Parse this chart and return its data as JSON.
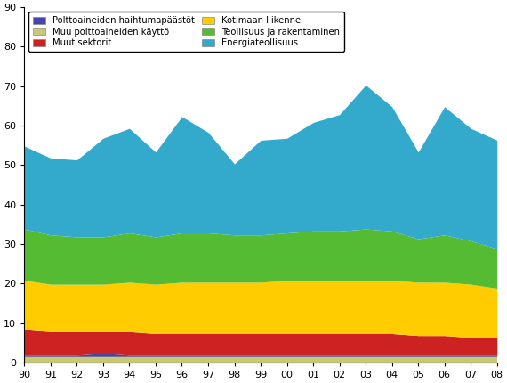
{
  "years": [
    1990,
    1991,
    1992,
    1993,
    1994,
    1995,
    1996,
    1997,
    1998,
    1999,
    2000,
    2001,
    2002,
    2003,
    2004,
    2005,
    2006,
    2007,
    2008
  ],
  "series": {
    "Muu polttoaineiden käyttö": [
      1.5,
      1.5,
      1.5,
      1.5,
      1.5,
      1.5,
      1.5,
      1.5,
      1.5,
      1.5,
      1.5,
      1.5,
      1.5,
      1.5,
      1.5,
      1.5,
      1.5,
      1.5,
      1.5
    ],
    "Polttoaineiden haihtumapäästöt": [
      0.3,
      0.3,
      0.3,
      0.8,
      0.3,
      0.3,
      0.3,
      0.3,
      0.3,
      0.3,
      0.3,
      0.3,
      0.3,
      0.3,
      0.3,
      0.3,
      0.3,
      0.3,
      0.3
    ],
    "Muut sektorit": [
      6.5,
      6.0,
      6.0,
      5.5,
      6.0,
      5.5,
      5.5,
      5.5,
      5.5,
      5.5,
      5.5,
      5.5,
      5.5,
      5.5,
      5.5,
      5.0,
      5.0,
      4.5,
      4.5
    ],
    "Kotimaan liikenne": [
      12.5,
      12.0,
      12.0,
      12.0,
      12.5,
      12.5,
      13.0,
      13.0,
      13.0,
      13.0,
      13.5,
      13.5,
      13.5,
      13.5,
      13.5,
      13.5,
      13.5,
      13.5,
      12.5
    ],
    "Teollisuus ja rakentaminen": [
      13.0,
      12.5,
      12.0,
      12.0,
      12.5,
      12.0,
      12.5,
      12.5,
      12.0,
      12.0,
      12.0,
      12.5,
      12.5,
      13.0,
      12.5,
      11.0,
      12.0,
      11.0,
      10.0
    ],
    "Energiateollisuus": [
      21.0,
      19.5,
      19.5,
      25.0,
      26.5,
      21.5,
      29.5,
      25.5,
      18.0,
      24.0,
      24.0,
      27.5,
      29.5,
      36.5,
      31.5,
      22.0,
      32.5,
      28.5,
      27.5
    ]
  },
  "colors": {
    "Muu polttoaineiden käyttö": "#c8c878",
    "Polttoaineiden haihtumapäästöt": "#4444aa",
    "Muut sektorit": "#cc2222",
    "Kotimaan liikenne": "#ffcc00",
    "Teollisuus ja rakentaminen": "#55bb33",
    "Energiateollisuus": "#33aacc"
  },
  "stack_order": [
    "Muu polttoaineiden käyttö",
    "Polttoaineiden haihtumapäästöt",
    "Muut sektorit",
    "Kotimaan liikenne",
    "Teollisuus ja rakentaminen",
    "Energiateollisuus"
  ],
  "legend_order": [
    "Polttoaineiden haihtumapäästöt",
    "Muu polttoaineiden käyttö",
    "Muut sektorit",
    "Kotimaan liikenne",
    "Teollisuus ja rakentaminen",
    "Energiateollisuus"
  ],
  "ylim": [
    0,
    90
  ],
  "yticks": [
    0,
    10,
    20,
    30,
    40,
    50,
    60,
    70,
    80,
    90
  ],
  "background_color": "#ffffff",
  "figsize": [
    5.7,
    4.3
  ],
  "dpi": 100
}
